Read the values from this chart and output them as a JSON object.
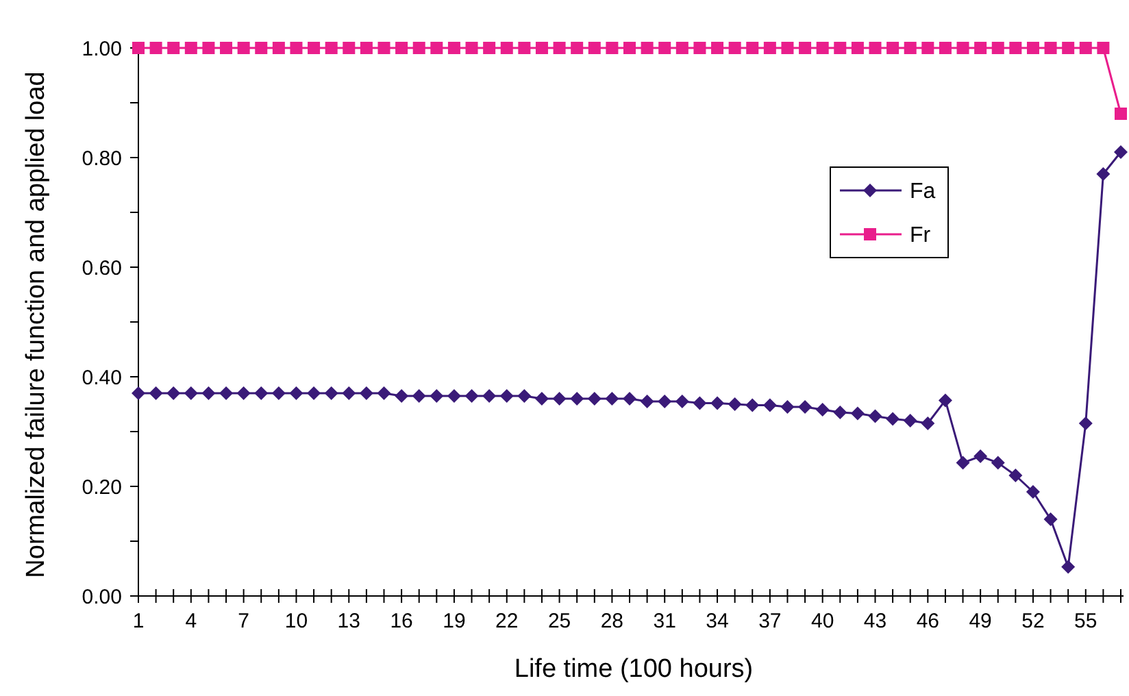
{
  "chart_data": {
    "type": "line",
    "xlabel": "Life time  (100 hours)",
    "ylabel": "Normalized failure function and applied load",
    "categories": [
      "1",
      null,
      null,
      "4",
      null,
      null,
      "7",
      null,
      null,
      "10",
      null,
      null,
      "13",
      null,
      null,
      "16",
      null,
      null,
      "19",
      null,
      null,
      "22",
      null,
      null,
      "25",
      null,
      null,
      "28",
      null,
      null,
      "31",
      null,
      null,
      "34",
      null,
      null,
      "37",
      null,
      null,
      "40",
      null,
      null,
      "43",
      null,
      null,
      "46",
      null,
      null,
      "49",
      null,
      null,
      "52",
      null,
      null,
      "55",
      null,
      null
    ],
    "series": [
      {
        "name": "Fa",
        "color": "#3a1a78",
        "marker": "diamond",
        "values": [
          0.37,
          0.37,
          0.37,
          0.37,
          0.37,
          0.37,
          0.37,
          0.37,
          0.37,
          0.37,
          0.37,
          0.37,
          0.37,
          0.37,
          0.37,
          0.365,
          0.365,
          0.365,
          0.365,
          0.365,
          0.365,
          0.365,
          0.365,
          0.36,
          0.36,
          0.36,
          0.36,
          0.36,
          0.36,
          0.355,
          0.355,
          0.355,
          0.352,
          0.352,
          0.35,
          0.348,
          0.348,
          0.345,
          0.345,
          0.34,
          0.335,
          0.333,
          0.328,
          0.323,
          0.32,
          0.315,
          0.357,
          0.243,
          0.255,
          0.243,
          0.22,
          0.19,
          0.14,
          0.053,
          0.315,
          0.77,
          0.81
        ]
      },
      {
        "name": "Fr",
        "color": "#e91e8c",
        "marker": "square",
        "values": [
          1,
          1,
          1,
          1,
          1,
          1,
          1,
          1,
          1,
          1,
          1,
          1,
          1,
          1,
          1,
          1,
          1,
          1,
          1,
          1,
          1,
          1,
          1,
          1,
          1,
          1,
          1,
          1,
          1,
          1,
          1,
          1,
          1,
          1,
          1,
          1,
          1,
          1,
          1,
          1,
          1,
          1,
          1,
          1,
          1,
          1,
          1,
          1,
          1,
          1,
          1,
          1,
          1,
          1,
          1,
          1,
          0.88
        ]
      }
    ],
    "ylim": [
      0,
      1
    ],
    "yticks": [
      {
        "value": 0,
        "label": "0.00"
      },
      {
        "value": 0.1,
        "label": null
      },
      {
        "value": 0.2,
        "label": "0.20"
      },
      {
        "value": 0.3,
        "label": null
      },
      {
        "value": 0.4,
        "label": "0.40"
      },
      {
        "value": 0.5,
        "label": null
      },
      {
        "value": 0.6,
        "label": "0.60"
      },
      {
        "value": 0.7,
        "label": null
      },
      {
        "value": 0.8,
        "label": "0.80"
      },
      {
        "value": 0.9,
        "label": null
      },
      {
        "value": 1,
        "label": "1.00"
      }
    ],
    "grid": false,
    "legend": "top right",
    "line_style": "solid"
  }
}
